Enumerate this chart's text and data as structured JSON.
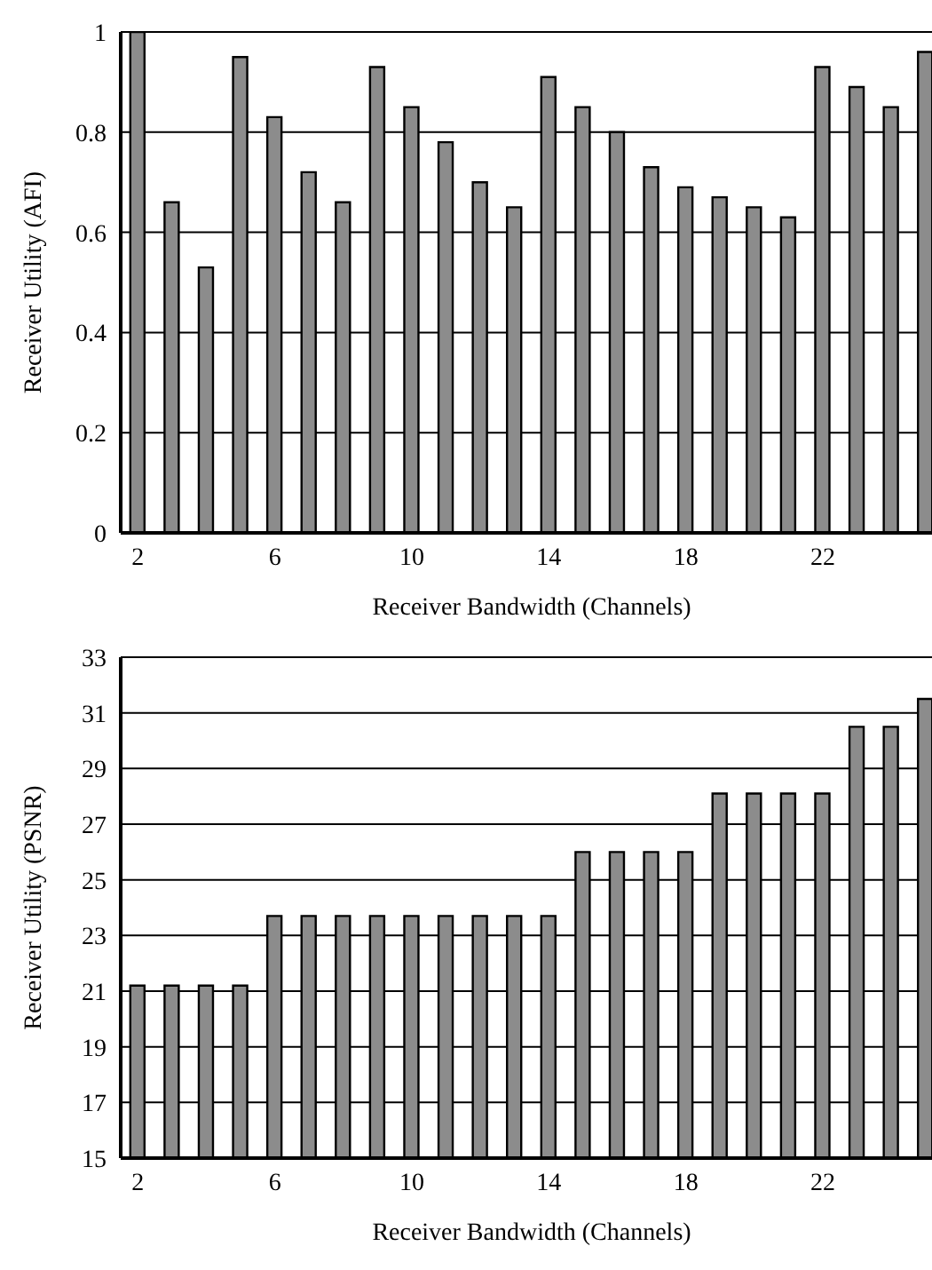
{
  "chart_data": [
    {
      "type": "bar",
      "xlabel": "Receiver Bandwidth (Channels)",
      "ylabel": "Receiver Utility  (AFI)",
      "categories": [
        "2",
        null,
        null,
        null,
        "6",
        null,
        null,
        null,
        "10",
        null,
        null,
        null,
        "14",
        null,
        null,
        null,
        "18",
        null,
        null,
        null,
        "22",
        null,
        null,
        null
      ],
      "values": [
        1.0,
        0.66,
        0.53,
        0.95,
        0.83,
        0.72,
        0.66,
        0.93,
        0.85,
        0.78,
        0.7,
        0.65,
        0.91,
        0.85,
        0.8,
        0.73,
        0.69,
        0.67,
        0.65,
        0.63,
        0.93,
        0.89,
        0.85,
        0.96
      ],
      "color": "#8c8c8c",
      "ylim": [
        0,
        1
      ],
      "yticks": [
        0,
        0.2,
        0.4,
        0.6,
        0.8,
        1
      ],
      "grid": "y"
    },
    {
      "type": "bar",
      "xlabel": "Receiver Bandwidth (Channels)",
      "ylabel": "Receiver Utility  (PSNR)",
      "categories": [
        "2",
        null,
        null,
        null,
        "6",
        null,
        null,
        null,
        "10",
        null,
        null,
        null,
        "14",
        null,
        null,
        null,
        "18",
        null,
        null,
        null,
        "22",
        null,
        null,
        null
      ],
      "values": [
        21.2,
        21.2,
        21.2,
        21.2,
        23.7,
        23.7,
        23.7,
        23.7,
        23.7,
        23.7,
        23.7,
        23.7,
        23.7,
        26.0,
        26.0,
        26.0,
        26.0,
        28.1,
        28.1,
        28.1,
        28.1,
        30.5,
        30.5,
        31.5
      ],
      "color": "#8c8c8c",
      "ylim": [
        15,
        33
      ],
      "yticks": [
        15,
        17,
        19,
        21,
        23,
        25,
        27,
        29,
        31,
        33
      ],
      "grid": "y"
    }
  ]
}
